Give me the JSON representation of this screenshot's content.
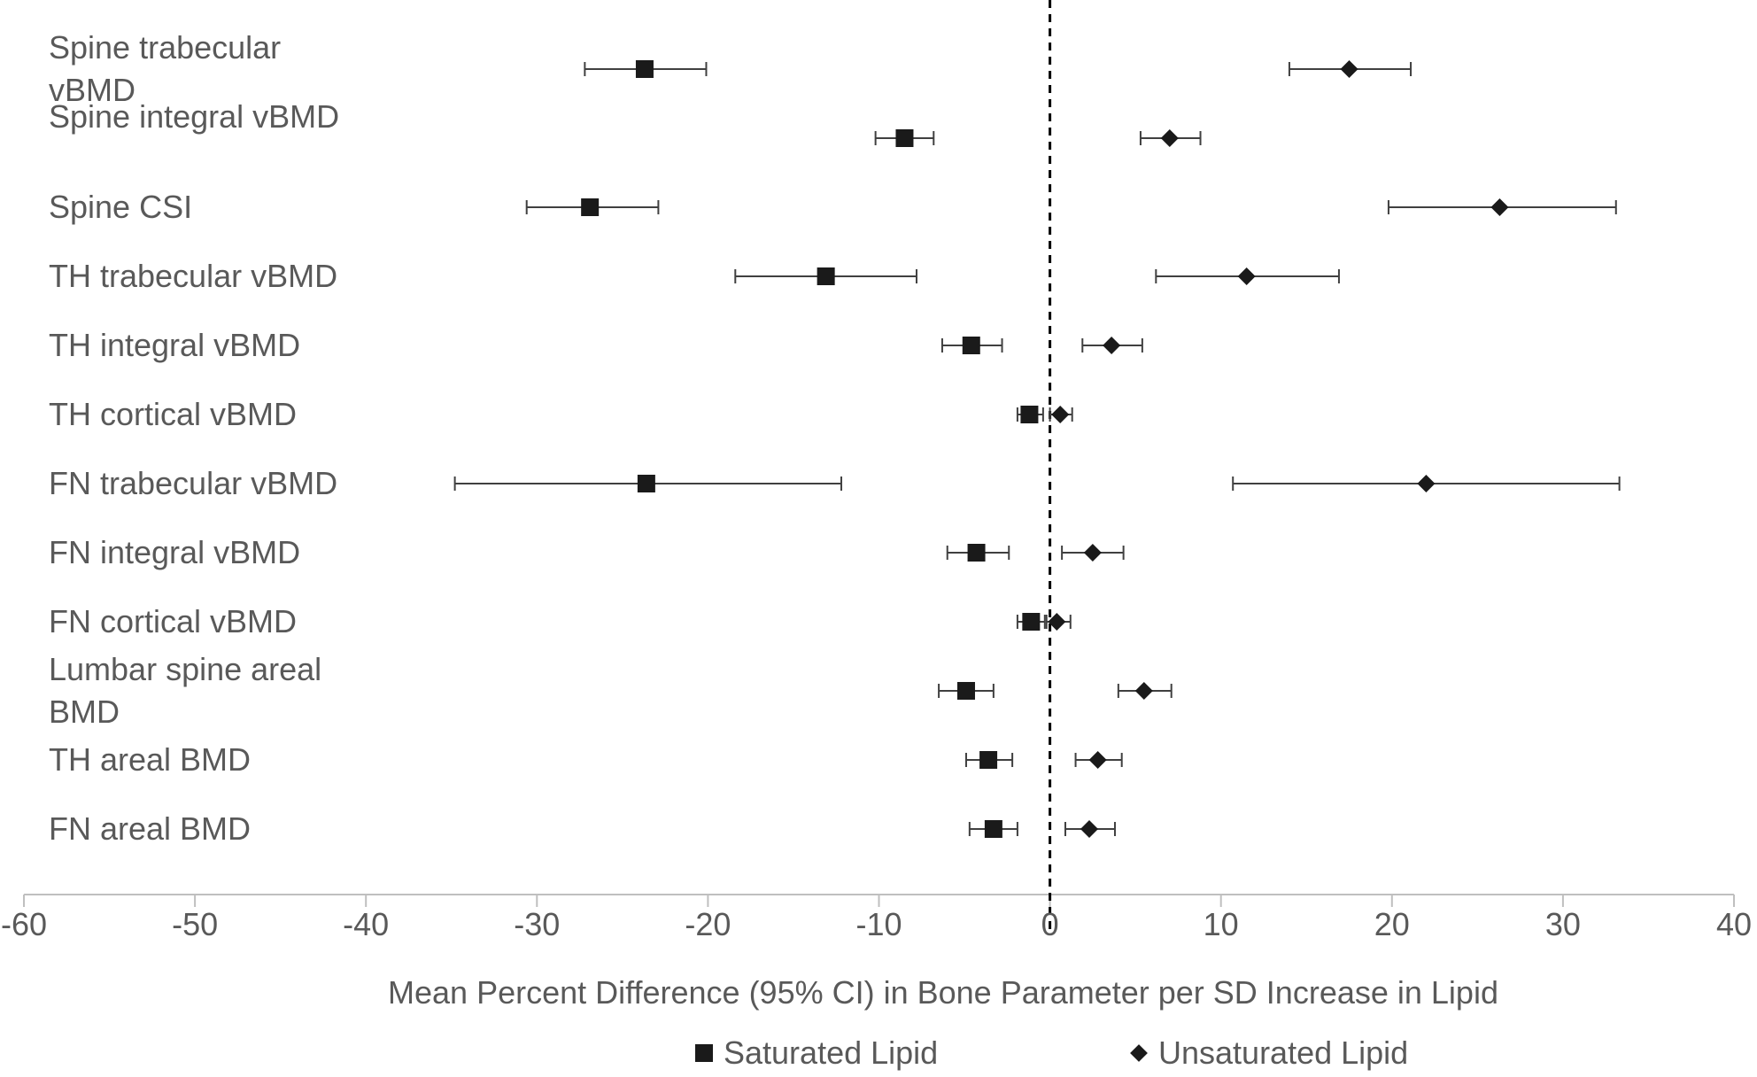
{
  "chart_data": {
    "type": "scatter",
    "subtype": "forest-plot",
    "xlim": [
      -60,
      40
    ],
    "x_ticks": [
      "-60",
      "-50",
      "-40",
      "-30",
      "-20",
      "-10",
      "0",
      "10",
      "20",
      "30",
      "40"
    ],
    "xlabel": "Mean Percent Difference (95% CI) in Bone Parameter per SD Increase in Lipid",
    "reference_line": 0,
    "grid": false,
    "legend_position": "bottom",
    "categories": [
      "Spine trabecular vBMD",
      "Spine integral vBMD",
      "Spine CSI",
      "TH trabecular vBMD",
      "TH integral vBMD",
      "TH cortical vBMD",
      "FN trabecular vBMD",
      "FN integral vBMD",
      "FN cortical vBMD",
      "Lumbar spine areal BMD",
      "TH areal BMD",
      "FN areal BMD"
    ],
    "series": [
      {
        "name": "Saturated Lipid",
        "marker": "square",
        "color": "#1a1a1a",
        "values": [
          -23.7,
          -8.5,
          -26.9,
          -13.1,
          -4.6,
          -1.2,
          -23.6,
          -4.3,
          -1.1,
          -4.9,
          -3.6,
          -3.3
        ],
        "ci_low": [
          -27.2,
          -10.2,
          -30.6,
          -18.4,
          -6.3,
          -1.9,
          -34.8,
          -6.0,
          -1.9,
          -6.5,
          -4.9,
          -4.7
        ],
        "ci_high": [
          -20.1,
          -6.8,
          -22.9,
          -7.8,
          -2.8,
          -0.4,
          -12.2,
          -2.4,
          -0.3,
          -3.3,
          -2.2,
          -1.9
        ]
      },
      {
        "name": "Unsaturated Lipid",
        "marker": "diamond",
        "color": "#1a1a1a",
        "values": [
          17.5,
          7.0,
          26.3,
          11.5,
          3.6,
          0.6,
          22.0,
          2.5,
          0.4,
          5.5,
          2.8,
          2.3
        ],
        "ci_low": [
          14.0,
          5.3,
          19.8,
          6.2,
          1.9,
          0.0,
          10.7,
          0.7,
          -0.2,
          4.0,
          1.5,
          0.9
        ],
        "ci_high": [
          21.1,
          8.8,
          33.1,
          16.9,
          5.4,
          1.3,
          33.3,
          4.3,
          1.2,
          7.1,
          4.2,
          3.8
        ]
      }
    ]
  },
  "category_display": [
    "Spine trabecular vBMD",
    "Spine integral vBMD",
    "Spine CSI",
    "TH trabecular vBMD",
    "TH integral vBMD",
    "TH cortical vBMD",
    "FN trabecular vBMD",
    "FN integral vBMD",
    "FN cortical vBMD",
    "Lumbar spine areal BMD",
    "TH areal BMD",
    "FN areal BMD"
  ],
  "legend": {
    "saturated_label": "Saturated Lipid",
    "unsaturated_label": "Unsaturated Lipid"
  }
}
